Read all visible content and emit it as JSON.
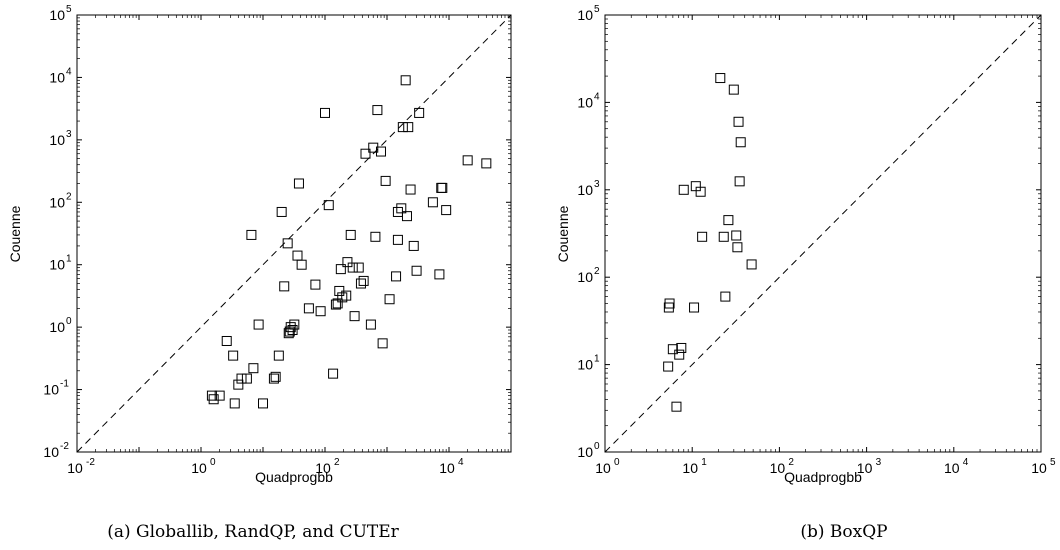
{
  "chart_data": [
    {
      "type": "scatter",
      "caption": "(a) Globallib, RandQP, and CUTEr",
      "xlabel": "Quadprogbb",
      "ylabel": "Couenne",
      "xscale": "log",
      "yscale": "log",
      "xlim": [
        0.01,
        100000
      ],
      "ylim": [
        0.01,
        100000
      ],
      "x_tick_exponents": [
        -2,
        0,
        2,
        4
      ],
      "y_tick_exponents": [
        -2,
        -1,
        0,
        1,
        2,
        3,
        4,
        5
      ],
      "tick_base": "10",
      "marker": "square",
      "reference_line": "y = x (dashed)",
      "points": [
        [
          1.5,
          0.08
        ],
        [
          1.6,
          0.07
        ],
        [
          2,
          0.08
        ],
        [
          2.6,
          0.6
        ],
        [
          3.3,
          0.35
        ],
        [
          3.5,
          0.06
        ],
        [
          4,
          0.12
        ],
        [
          4.5,
          0.15
        ],
        [
          5.5,
          0.15
        ],
        [
          6.5,
          30
        ],
        [
          7,
          0.22
        ],
        [
          8.5,
          1.1
        ],
        [
          10,
          0.06
        ],
        [
          15,
          0.15
        ],
        [
          16,
          0.16
        ],
        [
          18,
          0.35
        ],
        [
          20,
          70
        ],
        [
          22,
          4.5
        ],
        [
          25,
          22
        ],
        [
          26,
          0.8
        ],
        [
          27,
          0.85
        ],
        [
          28,
          1.0
        ],
        [
          30,
          0.9
        ],
        [
          32,
          1.1
        ],
        [
          36,
          14
        ],
        [
          38,
          200
        ],
        [
          42,
          10
        ],
        [
          55,
          2
        ],
        [
          70,
          4.8
        ],
        [
          85,
          1.8
        ],
        [
          100,
          2700
        ],
        [
          115,
          90
        ],
        [
          135,
          0.18
        ],
        [
          150,
          2.3
        ],
        [
          160,
          2.4
        ],
        [
          170,
          3.8
        ],
        [
          180,
          8.5
        ],
        [
          190,
          3.0
        ],
        [
          220,
          3.2
        ],
        [
          230,
          11
        ],
        [
          260,
          30
        ],
        [
          280,
          9
        ],
        [
          300,
          1.5
        ],
        [
          350,
          9
        ],
        [
          380,
          5
        ],
        [
          420,
          5.5
        ],
        [
          450,
          600
        ],
        [
          550,
          1.1
        ],
        [
          600,
          750
        ],
        [
          650,
          28
        ],
        [
          700,
          3000
        ],
        [
          800,
          650
        ],
        [
          850,
          0.55
        ],
        [
          950,
          220
        ],
        [
          1100,
          2.8
        ],
        [
          1400,
          6.5
        ],
        [
          1500,
          25
        ],
        [
          1500,
          70
        ],
        [
          1700,
          80
        ],
        [
          1800,
          1600
        ],
        [
          2000,
          9000
        ],
        [
          2100,
          60
        ],
        [
          2200,
          1600
        ],
        [
          2400,
          160
        ],
        [
          2700,
          20
        ],
        [
          3000,
          8
        ],
        [
          3300,
          2700
        ],
        [
          5500,
          100
        ],
        [
          7000,
          7
        ],
        [
          7500,
          170
        ],
        [
          7800,
          170
        ],
        [
          9000,
          75
        ],
        [
          20000,
          470
        ],
        [
          40000,
          420
        ]
      ]
    },
    {
      "type": "scatter",
      "caption": "(b) BoxQP",
      "xlabel": "Quadprogbb",
      "ylabel": "Couenne",
      "xscale": "log",
      "yscale": "log",
      "xlim": [
        1,
        100000
      ],
      "ylim": [
        1,
        100000
      ],
      "x_tick_exponents": [
        0,
        1,
        2,
        3,
        4,
        5
      ],
      "y_tick_exponents": [
        0,
        1,
        2,
        3,
        4,
        5
      ],
      "tick_base": "10",
      "marker": "square",
      "reference_line": "y = x (dashed)",
      "points": [
        [
          5.3,
          9.5
        ],
        [
          5.4,
          45
        ],
        [
          5.5,
          50
        ],
        [
          6,
          15
        ],
        [
          6.6,
          3.3
        ],
        [
          7.1,
          13
        ],
        [
          7.5,
          15.5
        ],
        [
          8,
          1000
        ],
        [
          10.5,
          45
        ],
        [
          11,
          1100
        ],
        [
          12.5,
          950
        ],
        [
          13,
          290
        ],
        [
          21,
          19000
        ],
        [
          23,
          290
        ],
        [
          24,
          60
        ],
        [
          26,
          450
        ],
        [
          30,
          14000
        ],
        [
          32,
          300
        ],
        [
          33,
          220
        ],
        [
          34,
          6000
        ],
        [
          35,
          1250
        ],
        [
          36,
          3500
        ],
        [
          48,
          140
        ]
      ]
    }
  ]
}
